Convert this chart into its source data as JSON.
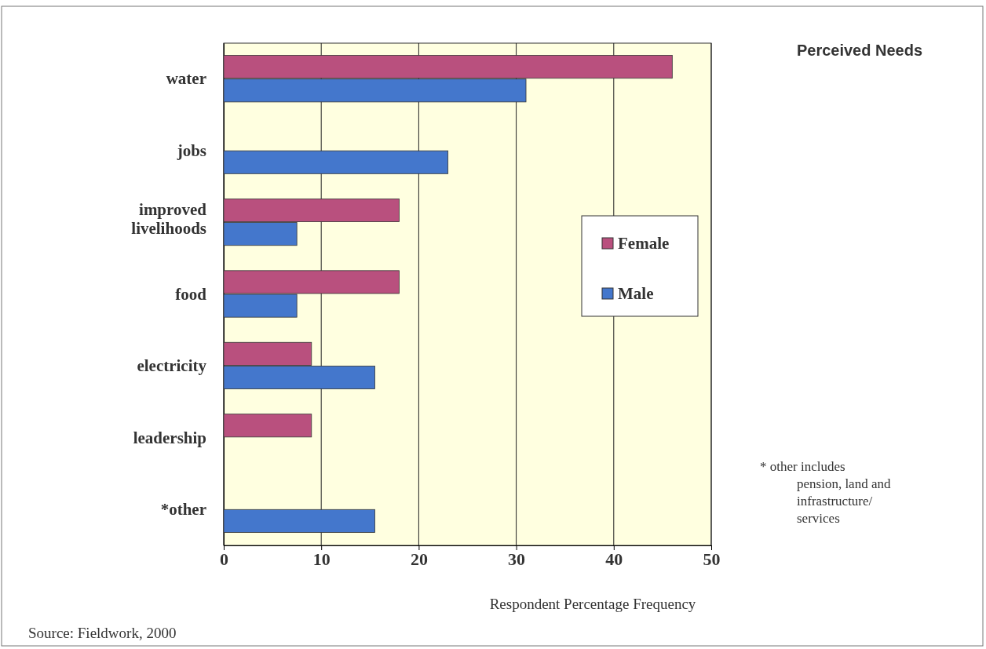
{
  "chart_data": {
    "type": "bar",
    "orientation": "horizontal",
    "title": "Perceived Needs",
    "xlabel": "Respondent Percentage Frequency",
    "categories": [
      "water",
      "jobs",
      "improved livelihoods",
      "food",
      "electricity",
      "leadership",
      "*other"
    ],
    "series": [
      {
        "name": "Female",
        "color": "#b9507e",
        "values": [
          46,
          null,
          18,
          18,
          9,
          9,
          null
        ]
      },
      {
        "name": "Male",
        "color": "#4477cc",
        "values": [
          31,
          23,
          7.5,
          7.5,
          15.5,
          null,
          15.5
        ]
      }
    ],
    "xlim": [
      0,
      50
    ],
    "xticks": [
      0,
      10,
      20,
      30,
      40,
      50
    ],
    "grid": "x",
    "legend": "right",
    "annotations": [
      "* other includes pension, land and infrastructure/ services",
      "Source: Fieldwork, 2000"
    ]
  }
}
